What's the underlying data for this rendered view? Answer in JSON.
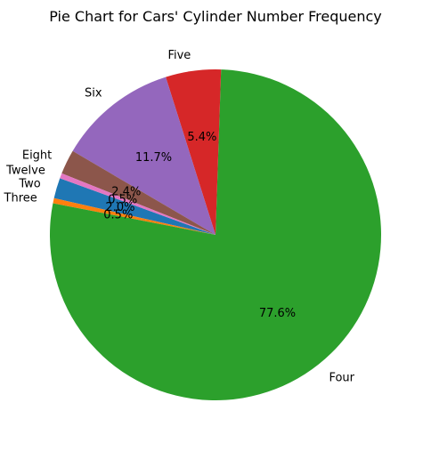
{
  "chart_data": {
    "type": "pie",
    "title": "Pie Chart for Cars' Cylinder Number Frequency",
    "start_angle_deg": 160,
    "direction": "counterclockwise",
    "slices": [
      {
        "label": "Two",
        "value": 2.0,
        "pct_label": "2.0%",
        "color": "#1f77b4"
      },
      {
        "label": "Three",
        "value": 0.5,
        "pct_label": "0.5%",
        "color": "#ff7f0e"
      },
      {
        "label": "Four",
        "value": 77.6,
        "pct_label": "77.6%",
        "color": "#2ca02c"
      },
      {
        "label": "Five",
        "value": 5.4,
        "pct_label": "5.4%",
        "color": "#d62728"
      },
      {
        "label": "Six",
        "value": 11.7,
        "pct_label": "11.7%",
        "color": "#9467bd"
      },
      {
        "label": "Eight",
        "value": 2.4,
        "pct_label": "2.4%",
        "color": "#8c564b"
      },
      {
        "label": "Twelve",
        "value": 0.5,
        "pct_label": "0.5%",
        "color": "#e377c2"
      }
    ]
  }
}
